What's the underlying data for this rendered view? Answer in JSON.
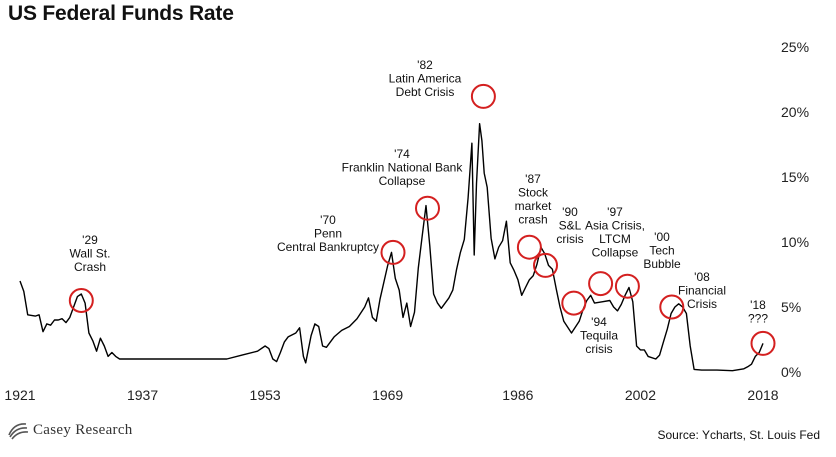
{
  "title": "US Federal Funds Rate",
  "source": "Source: Ycharts, St. Louis Fed",
  "logo_text": "Casey Research",
  "colors": {
    "line": "#000000",
    "circle": "#d42020",
    "axis": "#555555"
  },
  "chart_data": {
    "type": "line",
    "title": "US Federal Funds Rate",
    "xlabel": "",
    "ylabel": "",
    "xlim": [
      1921,
      2019
    ],
    "ylim": [
      0,
      25
    ],
    "x_ticks": [
      1921,
      1937,
      1953,
      1969,
      1986,
      2002,
      2018
    ],
    "y_ticks": [
      "0%",
      "5%",
      "10%",
      "15%",
      "20%",
      "25%"
    ],
    "series": [
      {
        "x": [
          1921,
          1921.5,
          1922,
          1923,
          1923.5,
          1924,
          1924.5,
          1925,
          1925.5,
          1926,
          1926.5,
          1927,
          1927.5,
          1928,
          1928.5,
          1929,
          1929.5,
          1930,
          1930.5,
          1931,
          1931.5,
          1932,
          1932.5,
          1933,
          1933.5,
          1934,
          1935,
          1936,
          1937,
          1940,
          1945,
          1948,
          1950,
          1952,
          1953,
          1953.5,
          1954,
          1954.5,
          1955,
          1955.5,
          1956,
          1957,
          1957.5,
          1958,
          1958.3,
          1959,
          1959.5,
          1960,
          1960.5,
          1961,
          1962,
          1963,
          1964,
          1965,
          1966,
          1966.5,
          1967,
          1967.5,
          1968,
          1969,
          1969.5,
          1970,
          1970.5,
          1971,
          1971.5,
          1972,
          1972.5,
          1973,
          1973.5,
          1974,
          1974.5,
          1975,
          1975.5,
          1976,
          1977,
          1977.5,
          1978,
          1978.5,
          1979,
          1979.5,
          1980,
          1980.3,
          1980.6,
          1981,
          1981.3,
          1981.6,
          1982,
          1982.5,
          1983,
          1983.5,
          1984,
          1984.5,
          1985,
          1985.5,
          1986,
          1986.5,
          1987,
          1987.5,
          1988,
          1988.5,
          1989,
          1989.5,
          1990,
          1990.5,
          1991,
          1991.5,
          1992,
          1993,
          1994,
          1994.5,
          1995,
          1995.5,
          1996,
          1997,
          1998,
          1998.5,
          1999,
          1999.5,
          2000,
          2000.5,
          2001,
          2001.5,
          2002,
          2002.5,
          2003,
          2004,
          2004.5,
          2005,
          2005.5,
          2006,
          2006.5,
          2007,
          2007.5,
          2008,
          2008.5,
          2009,
          2010,
          2012,
          2014,
          2015.5,
          2016,
          2016.5,
          2017,
          2017.5,
          2018
        ],
        "values": [
          7.0,
          6.2,
          4.4,
          4.3,
          4.4,
          3.1,
          3.7,
          3.6,
          4.0,
          4.0,
          4.1,
          3.8,
          4.2,
          5.0,
          5.8,
          6.0,
          5.3,
          3.0,
          2.4,
          1.6,
          2.6,
          2.0,
          1.2,
          1.5,
          1.2,
          1.0,
          1.0,
          1.0,
          1.0,
          1.0,
          1.0,
          1.0,
          1.3,
          1.6,
          2.0,
          1.8,
          1.0,
          0.8,
          1.5,
          2.3,
          2.7,
          3.0,
          3.4,
          1.2,
          0.7,
          2.8,
          3.7,
          3.5,
          2.0,
          1.9,
          2.7,
          3.2,
          3.5,
          4.1,
          5.0,
          5.7,
          4.2,
          3.9,
          5.6,
          8.2,
          9.2,
          7.2,
          6.3,
          4.2,
          5.3,
          3.5,
          4.6,
          8.0,
          10.4,
          12.8,
          9.7,
          6.0,
          5.3,
          4.9,
          5.7,
          6.3,
          7.9,
          9.2,
          10.2,
          13.4,
          17.6,
          9.0,
          14.5,
          19.1,
          17.8,
          15.3,
          14.2,
          10.3,
          8.7,
          9.6,
          10.1,
          11.6,
          8.4,
          7.8,
          7.1,
          5.9,
          6.5,
          7.1,
          7.4,
          8.3,
          9.6,
          9.1,
          8.2,
          7.9,
          6.4,
          5.0,
          3.9,
          3.0,
          3.9,
          4.8,
          5.5,
          5.9,
          5.3,
          5.4,
          5.5,
          5.0,
          4.7,
          5.2,
          5.9,
          6.5,
          5.4,
          2.0,
          1.7,
          1.7,
          1.2,
          1.0,
          1.3,
          2.3,
          3.3,
          4.5,
          5.0,
          5.25,
          5.0,
          4.5,
          2.0,
          0.2,
          0.15,
          0.15,
          0.1,
          0.25,
          0.4,
          0.6,
          1.2,
          1.5,
          2.2
        ]
      }
    ],
    "annotations": [
      {
        "lines": [
          "'29",
          "Wall St.",
          "Crash"
        ],
        "x": 1929,
        "y": 5.5
      },
      {
        "lines": [
          "'70",
          "Penn",
          "Central Bankruptcy"
        ],
        "x": 1969.7,
        "y": 9.2
      },
      {
        "lines": [
          "'74",
          "Franklin National Bank",
          "Collapse"
        ],
        "x": 1974.2,
        "y": 12.6
      },
      {
        "lines": [
          "'82",
          "Latin America",
          "Debt Crisis"
        ],
        "x": 1981.5,
        "y": 21.2
      },
      {
        "lines": [
          "'87",
          "Stock",
          "market",
          "crash"
        ],
        "x": 1987.5,
        "y": 9.6
      },
      {
        "lines": [
          "'90",
          "S&L",
          "crisis"
        ],
        "x": 1989.6,
        "y": 8.2
      },
      {
        "lines": [
          "'94",
          "Tequila",
          "crisis"
        ],
        "x": 1993.3,
        "y": 5.3
      },
      {
        "lines": [
          "'97",
          "Asia Crisis,",
          "LTCM",
          "Collapse"
        ],
        "x": 1996.8,
        "y": 6.8
      },
      {
        "lines": [
          "'00",
          "Tech",
          "Bubble"
        ],
        "x": 2000.3,
        "y": 6.6
      },
      {
        "lines": [
          "'08",
          "Financial",
          "Crisis"
        ],
        "x": 2006.1,
        "y": 5.0
      },
      {
        "lines": [
          "'18",
          "???"
        ],
        "x": 2018,
        "y": 2.2
      }
    ]
  }
}
